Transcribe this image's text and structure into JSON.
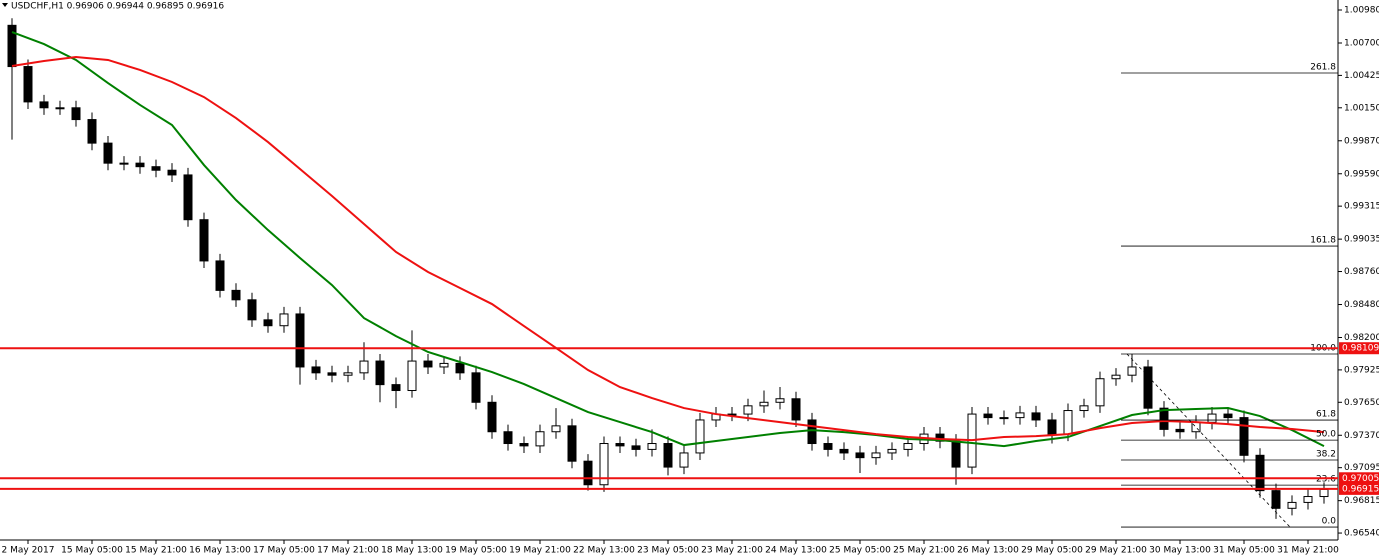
{
  "chart_data": {
    "type": "candlestick",
    "title": "USDCHF,H1  0.96906 0.96944 0.96895 0.96916",
    "categories": [
      null,
      "2 May 2017",
      null,
      null,
      null,
      "15 May 05:00",
      null,
      null,
      null,
      "15 May 21:00",
      null,
      null,
      null,
      "16 May 13:00",
      null,
      null,
      null,
      "17 May 05:00",
      null,
      null,
      null,
      "17 May 21:00",
      null,
      null,
      null,
      "18 May 13:00",
      null,
      null,
      null,
      "19 May 05:00",
      null,
      null,
      null,
      "19 May 21:00",
      null,
      null,
      null,
      "22 May 13:00",
      null,
      null,
      null,
      "23 May 05:00",
      null,
      null,
      null,
      "23 May 21:00",
      null,
      null,
      null,
      "24 May 13:00",
      null,
      null,
      null,
      "25 May 05:00",
      null,
      null,
      null,
      "25 May 21:00",
      null,
      null,
      null,
      "26 May 13:00",
      null,
      null,
      null,
      "29 May 05:00",
      null,
      null,
      null,
      "29 May 21:00",
      null,
      null,
      null,
      "30 May 13:00",
      null,
      null,
      null,
      "31 May 05:00",
      null,
      null,
      null,
      "31 May 21:00",
      null
    ],
    "open": [
      1.0085,
      1.005,
      1.002,
      1.0015,
      1.0015,
      1.0005,
      0.9985,
      0.9968,
      0.9968,
      0.9965,
      0.9962,
      0.9958,
      0.992,
      0.9885,
      0.986,
      0.9852,
      0.9835,
      0.983,
      0.984,
      0.9795,
      0.979,
      0.9788,
      0.979,
      0.98,
      0.978,
      0.9775,
      0.98,
      0.9795,
      0.9798,
      0.979,
      0.9765,
      0.974,
      0.973,
      0.9728,
      0.974,
      0.9745,
      0.9715,
      0.9695,
      0.973,
      0.9728,
      0.9725,
      0.973,
      0.971,
      0.9722,
      0.975,
      0.9755,
      0.9755,
      0.9762,
      0.9765,
      0.9768,
      0.975,
      0.973,
      0.9725,
      0.9722,
      0.9718,
      0.9722,
      0.9725,
      0.973,
      0.9738,
      0.9732,
      0.971,
      0.9755,
      0.9752,
      0.9752,
      0.9756,
      0.975,
      0.9738,
      0.9758,
      0.9762,
      0.9785,
      0.9788,
      0.9795,
      0.976,
      0.9742,
      0.974,
      0.9748,
      0.9755,
      0.9752,
      0.972,
      0.969,
      0.9675,
      0.968,
      0.9685
    ],
    "high": [
      1.0091,
      1.0056,
      1.0026,
      1.0021,
      1.0021,
      1.0011,
      0.9991,
      0.9974,
      0.9974,
      0.9971,
      0.9968,
      0.9964,
      0.9926,
      0.9891,
      0.9866,
      0.9858,
      0.9841,
      0.9846,
      0.9846,
      0.9801,
      0.9796,
      0.9796,
      0.9816,
      0.9806,
      0.9786,
      0.9826,
      0.9806,
      0.9804,
      0.9804,
      0.9796,
      0.9771,
      0.9746,
      0.9736,
      0.9746,
      0.976,
      0.9751,
      0.9721,
      0.9736,
      0.9736,
      0.9734,
      0.9742,
      0.9736,
      0.9728,
      0.9756,
      0.9761,
      0.9761,
      0.9768,
      0.9775,
      0.9778,
      0.9774,
      0.9756,
      0.9736,
      0.9731,
      0.9728,
      0.9728,
      0.9731,
      0.9736,
      0.9744,
      0.9744,
      0.9738,
      0.9761,
      0.9761,
      0.9758,
      0.9762,
      0.9762,
      0.9756,
      0.9764,
      0.9768,
      0.9791,
      0.9794,
      0.9806,
      0.9801,
      0.9766,
      0.9748,
      0.9754,
      0.9761,
      0.9761,
      0.9758,
      0.9726,
      0.9696,
      0.9686,
      0.9691,
      0.9697
    ],
    "low": [
      0.9988,
      1.0014,
      1.0009,
      1.0009,
      0.9999,
      0.9979,
      0.9962,
      0.9962,
      0.9959,
      0.9956,
      0.9952,
      0.9914,
      0.9879,
      0.9854,
      0.9846,
      0.9829,
      0.9824,
      0.9824,
      0.978,
      0.9784,
      0.9782,
      0.9782,
      0.9784,
      0.9765,
      0.976,
      0.9769,
      0.9789,
      0.9789,
      0.9784,
      0.9759,
      0.9734,
      0.9724,
      0.9722,
      0.9722,
      0.9734,
      0.9709,
      0.969,
      0.9689,
      0.9722,
      0.9719,
      0.9719,
      0.9703,
      0.9704,
      0.9716,
      0.9744,
      0.9749,
      0.9749,
      0.9756,
      0.9759,
      0.9744,
      0.9724,
      0.9719,
      0.9716,
      0.9705,
      0.9712,
      0.9716,
      0.9719,
      0.9724,
      0.9726,
      0.9695,
      0.9704,
      0.9746,
      0.9746,
      0.9746,
      0.9744,
      0.973,
      0.9732,
      0.9752,
      0.9756,
      0.9779,
      0.9782,
      0.9754,
      0.9736,
      0.9734,
      0.9734,
      0.9742,
      0.9746,
      0.9714,
      0.9684,
      0.9666,
      0.9669,
      0.9674,
      0.9679
    ],
    "close": [
      1.005,
      1.002,
      1.0015,
      1.0015,
      1.0005,
      0.9985,
      0.9968,
      0.9968,
      0.9965,
      0.9962,
      0.9958,
      0.992,
      0.9885,
      0.986,
      0.9852,
      0.9835,
      0.983,
      0.984,
      0.9795,
      0.979,
      0.9788,
      0.979,
      0.98,
      0.978,
      0.9775,
      0.98,
      0.9795,
      0.9798,
      0.979,
      0.9765,
      0.974,
      0.973,
      0.9728,
      0.974,
      0.9745,
      0.9715,
      0.9695,
      0.973,
      0.9728,
      0.9725,
      0.973,
      0.971,
      0.9722,
      0.975,
      0.9755,
      0.9755,
      0.9762,
      0.9765,
      0.9768,
      0.975,
      0.973,
      0.9725,
      0.9722,
      0.9718,
      0.9722,
      0.9725,
      0.973,
      0.9738,
      0.9732,
      0.971,
      0.9755,
      0.9752,
      0.9752,
      0.9756,
      0.975,
      0.9738,
      0.9758,
      0.9762,
      0.9785,
      0.9788,
      0.9795,
      0.976,
      0.9742,
      0.974,
      0.9748,
      0.9755,
      0.9752,
      0.972,
      0.969,
      0.9675,
      0.968,
      0.9685,
      0.9691
    ],
    "series": [
      {
        "color": "#008000",
        "x": [
          0,
          2,
          4,
          6,
          8,
          10,
          12,
          14,
          16,
          18,
          20,
          22,
          24,
          26,
          28,
          30,
          32,
          34,
          36,
          38,
          40,
          42,
          44,
          46,
          48,
          50,
          52,
          54,
          56,
          58,
          60,
          62,
          64,
          66,
          68,
          70,
          72,
          74,
          76,
          78,
          80,
          82
        ],
        "values": [
          1.00793,
          1.00691,
          1.00556,
          1.0036,
          1.00174,
          1.00004,
          0.99664,
          0.99367,
          0.99112,
          0.98875,
          0.98645,
          0.98365,
          0.98212,
          0.98077,
          0.97992,
          0.97907,
          0.97805,
          0.97686,
          0.97567,
          0.97482,
          0.97397,
          0.97287,
          0.97321,
          0.97355,
          0.97389,
          0.97414,
          0.97397,
          0.97372,
          0.97338,
          0.97329,
          0.97304,
          0.97278,
          0.97321,
          0.97355,
          0.97448,
          0.97542,
          0.97584,
          0.97593,
          0.97601,
          0.97533,
          0.97414,
          0.97278
        ]
      },
      {
        "color": "#ee1111",
        "x": [
          0,
          2,
          4,
          6,
          8,
          10,
          12,
          14,
          16,
          18,
          20,
          22,
          24,
          26,
          28,
          30,
          32,
          34,
          36,
          38,
          40,
          42,
          44,
          46,
          48,
          50,
          52,
          54,
          56,
          58,
          60,
          62,
          64,
          66,
          68,
          70,
          72,
          74,
          76,
          78,
          80,
          82
        ],
        "values": [
          1.00505,
          1.00547,
          1.00581,
          1.00556,
          1.00471,
          1.00369,
          1.00241,
          1.00063,
          0.99859,
          0.9963,
          0.99401,
          0.99163,
          0.98926,
          0.98756,
          0.9862,
          0.98484,
          0.98297,
          0.98111,
          0.97924,
          0.97779,
          0.97686,
          0.97601,
          0.9755,
          0.97516,
          0.97482,
          0.97448,
          0.97414,
          0.9738,
          0.97355,
          0.97338,
          0.97329,
          0.97355,
          0.97363,
          0.9738,
          0.97431,
          0.97474,
          0.97491,
          0.97482,
          0.97465,
          0.9744,
          0.97423,
          0.97397
        ]
      }
    ],
    "ylim": [
      0.96481,
      1.01065
    ],
    "yticks": [
      {
        "value": 1.0098,
        "label": "1.00980"
      },
      {
        "value": 1.007,
        "label": "1.00700"
      },
      {
        "value": 1.00425,
        "label": "1.00425"
      },
      {
        "value": 1.0015,
        "label": "1.00150"
      },
      {
        "value": 0.9987,
        "label": "0.99870"
      },
      {
        "value": 0.9959,
        "label": "0.99590"
      },
      {
        "value": 0.99315,
        "label": "0.99315"
      },
      {
        "value": 0.99035,
        "label": "0.99035"
      },
      {
        "value": 0.9876,
        "label": "0.98760"
      },
      {
        "value": 0.9848,
        "label": "0.98480"
      },
      {
        "value": 0.982,
        "label": "0.98200"
      },
      {
        "value": 0.97925,
        "label": "0.97925"
      },
      {
        "value": 0.9765,
        "label": "0.97650"
      },
      {
        "value": 0.9737,
        "label": "0.97370"
      },
      {
        "value": 0.97095,
        "label": "0.97095"
      },
      {
        "value": 0.96815,
        "label": "0.96815"
      },
      {
        "value": 0.9654,
        "label": "0.96540"
      }
    ],
    "hlines": [
      {
        "value": 0.98109,
        "label": "0.98109"
      },
      {
        "value": 0.97005,
        "label": "0.97005"
      },
      {
        "value": 0.96915,
        "label": "0.96915"
      }
    ],
    "hline_color": "#ee1111",
    "fibo": [
      {
        "value": 1.00445,
        "label": "261.8"
      },
      {
        "value": 0.98976,
        "label": "161.8"
      },
      {
        "value": 0.9806,
        "label": "100.0"
      },
      {
        "value": 0.97499,
        "label": "61.8"
      },
      {
        "value": 0.97329,
        "label": "50.0"
      },
      {
        "value": 0.9716,
        "label": "38.2"
      },
      {
        "value": 0.96947,
        "label": "23.6"
      },
      {
        "value": 0.96591,
        "label": "0.0"
      }
    ]
  }
}
